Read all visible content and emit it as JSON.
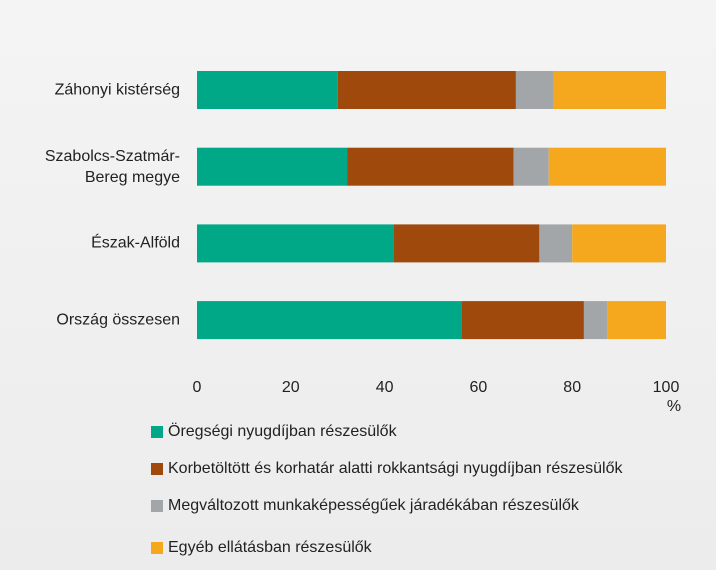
{
  "chart_data": {
    "type": "stacked_barh",
    "categories": [
      "Záhonyi kistérség",
      "Szabolcs-Szatmár-\nBereg megye",
      "Észak-Alföld",
      "Ország összesen"
    ],
    "series": [
      {
        "name": "Öregségi nyugdíjban részesülők",
        "color": "#00a887",
        "values": [
          30,
          32,
          42,
          56.5
        ]
      },
      {
        "name": "Korbetöltött és korhatár alatti rokkantsági nyugdíjban részesülők",
        "color": "#a0490c",
        "values": [
          38,
          35.5,
          31,
          26
        ]
      },
      {
        "name": "Megváltozott munkaképességűek járadékában részesülők",
        "color": "#a3a6a8",
        "values": [
          8,
          7.5,
          7,
          5
        ]
      },
      {
        "name": "Egyéb ellátásban részesülők",
        "color": "#f5a71d",
        "values": [
          24,
          25,
          20,
          12.5
        ]
      }
    ],
    "xlabel": "%",
    "xlim": [
      0,
      100
    ],
    "xticks": [
      0,
      20,
      40,
      60,
      80,
      100
    ],
    "grid": false
  }
}
